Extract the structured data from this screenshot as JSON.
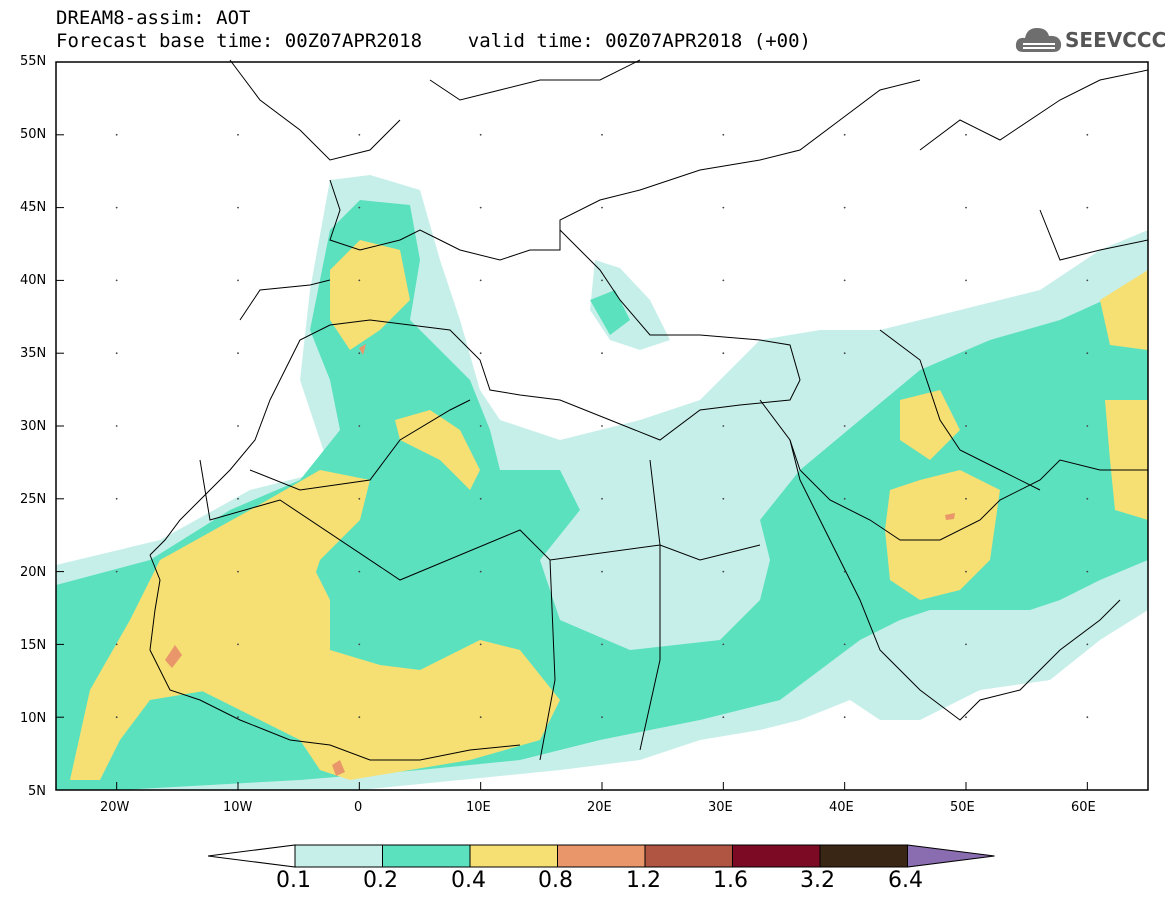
{
  "header": {
    "title_line1": "DREAM8-assim: AOT",
    "title_line2": "Forecast base time: 00Z07APR2018    valid time: 00Z07APR2018 (+00)",
    "logo_text": "SEEVCCC"
  },
  "axes": {
    "lat_labels": [
      "55N",
      "50N",
      "45N",
      "40N",
      "35N",
      "30N",
      "25N",
      "20N",
      "15N",
      "10N",
      "5N"
    ],
    "lon_labels": [
      "20W",
      "10W",
      "0",
      "10E",
      "20E",
      "30E",
      "40E",
      "50E",
      "60E"
    ]
  },
  "colorbar": {
    "colors": [
      "#ffffff",
      "#c6efe9",
      "#5ce1bf",
      "#f6e073",
      "#e8966a",
      "#b15543",
      "#7d0a24",
      "#3a2614",
      "#8a6cb1"
    ],
    "tick_labels": [
      "0.1",
      "0.2",
      "0.4",
      "0.8",
      "1.2",
      "1.6",
      "3.2",
      "6.4"
    ]
  },
  "map": {
    "variable": "AOT",
    "region": "North Africa, Mediterranean and Middle East",
    "lon_range": [
      -25,
      65
    ],
    "lat_range": [
      5,
      55
    ],
    "coastline-color": "#000000",
    "high_aot_areas": [
      "Sahel",
      "West Africa coast",
      "Arabian Peninsula",
      "Iberian Peninsula"
    ]
  }
}
